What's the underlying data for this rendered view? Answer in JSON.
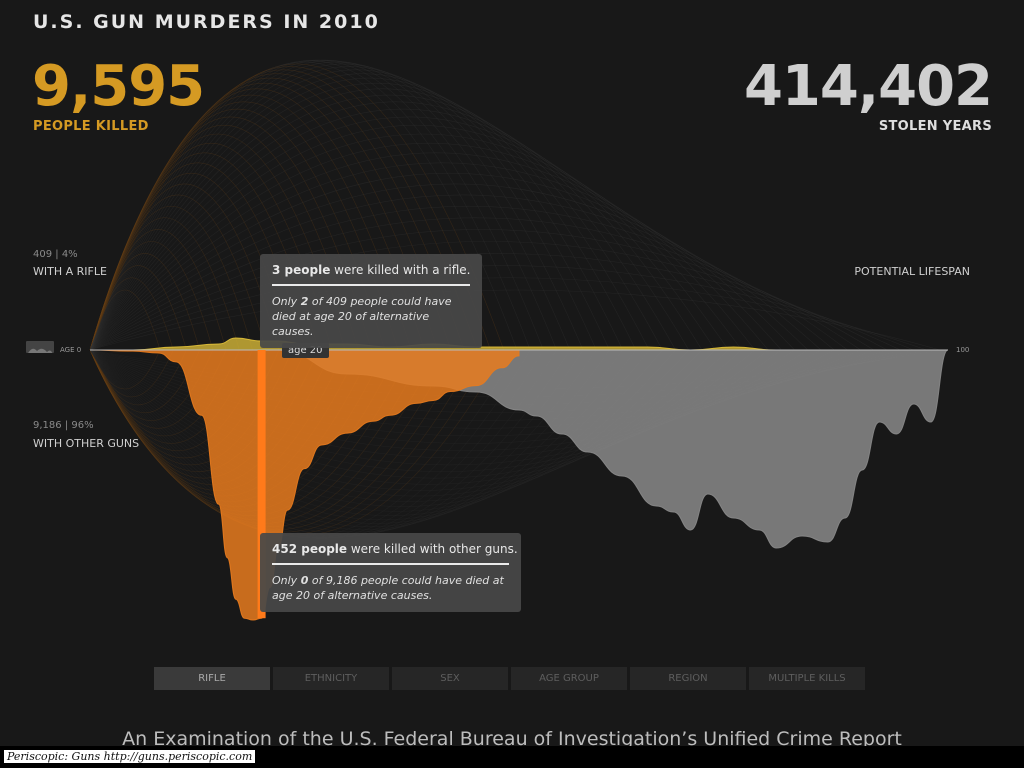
{
  "header": {
    "title": "U.S. GUN MURDERS IN 2010",
    "killed_number": "9,595",
    "killed_label": "PEOPLE KILLED",
    "stolen_number": "414,402",
    "stolen_label": "STOLEN YEARS"
  },
  "side_labels": {
    "rifle_stat": "409 | 4%",
    "rifle_label": "WITH A RIFLE",
    "other_stat": "9,186 | 96%",
    "other_label": "WITH OTHER GUNS",
    "lifespan_label": "POTENTIAL LIFESPAN",
    "age_start": "AGE 0",
    "age_end": "100",
    "age_marker": "age 20"
  },
  "tooltip_rifle": {
    "count": "3 people",
    "text": " were killed with a rifle.",
    "body_prefix": "Only ",
    "body_count": "2",
    "body_suffix": " of 409 people could have died at age 20 of alternative causes."
  },
  "tooltip_other": {
    "count": "452 people",
    "text": " were killed with other guns.",
    "body_prefix": "Only ",
    "body_count": "0",
    "body_suffix": " of 9,186 people could have died at age 20 of alternative causes."
  },
  "tabs": [
    "RIFLE",
    "ETHNICITY",
    "SEX",
    "AGE GROUP",
    "REGION",
    "MULTIPLE KILLS"
  ],
  "active_tab": "RIFLE",
  "footer": {
    "subtitle": "An Examination of the U.S. Federal Bureau of Investigation’s Unified Crime Report",
    "credit": "Periscopic: Guns http://guns.periscopic.com"
  },
  "colors": {
    "killed": "#d59a23",
    "rifle": "#e2c23a",
    "other_guns": "#e87b1e",
    "potential": "#8a8a8a",
    "highlight": "#ff7a1a"
  },
  "chart_data": {
    "type": "area",
    "title": "U.S. GUN MURDERS IN 2010",
    "xlabel": "age",
    "xlim": [
      0,
      100
    ],
    "selected_age": 20,
    "series": [
      {
        "name": "WITH A RIFLE",
        "x": [
          0,
          5,
          10,
          15,
          17,
          20,
          22,
          25,
          30,
          35,
          40,
          45,
          50,
          55,
          60,
          65,
          70,
          75,
          80,
          85,
          90,
          95,
          100
        ],
        "values": [
          0,
          0,
          1,
          2,
          4,
          3,
          3,
          2,
          2,
          1,
          2,
          1,
          1,
          1,
          1,
          1,
          0,
          1,
          0,
          0,
          0,
          0,
          0
        ]
      },
      {
        "name": "WITH OTHER GUNS",
        "x": [
          0,
          5,
          8,
          10,
          13,
          15,
          16,
          17,
          18,
          19,
          20,
          21,
          22,
          23,
          25,
          27,
          30,
          33,
          35,
          38,
          40,
          42,
          45,
          48,
          50
        ],
        "values": [
          0,
          2,
          5,
          20,
          110,
          260,
          350,
          420,
          452,
          455,
          452,
          400,
          330,
          270,
          200,
          160,
          140,
          120,
          110,
          90,
          85,
          70,
          60,
          30,
          10
        ]
      },
      {
        "name": "POTENTIAL LIFESPAN",
        "x": [
          22,
          30,
          40,
          45,
          50,
          52,
          55,
          58,
          62,
          66,
          68,
          70,
          72,
          75,
          78,
          80,
          83,
          86,
          88,
          90,
          92,
          94,
          96,
          98,
          100
        ],
        "values": [
          0,
          40,
          60,
          70,
          100,
          110,
          140,
          170,
          210,
          260,
          270,
          300,
          240,
          280,
          300,
          330,
          310,
          320,
          280,
          200,
          120,
          140,
          90,
          120,
          0
        ]
      }
    ]
  }
}
